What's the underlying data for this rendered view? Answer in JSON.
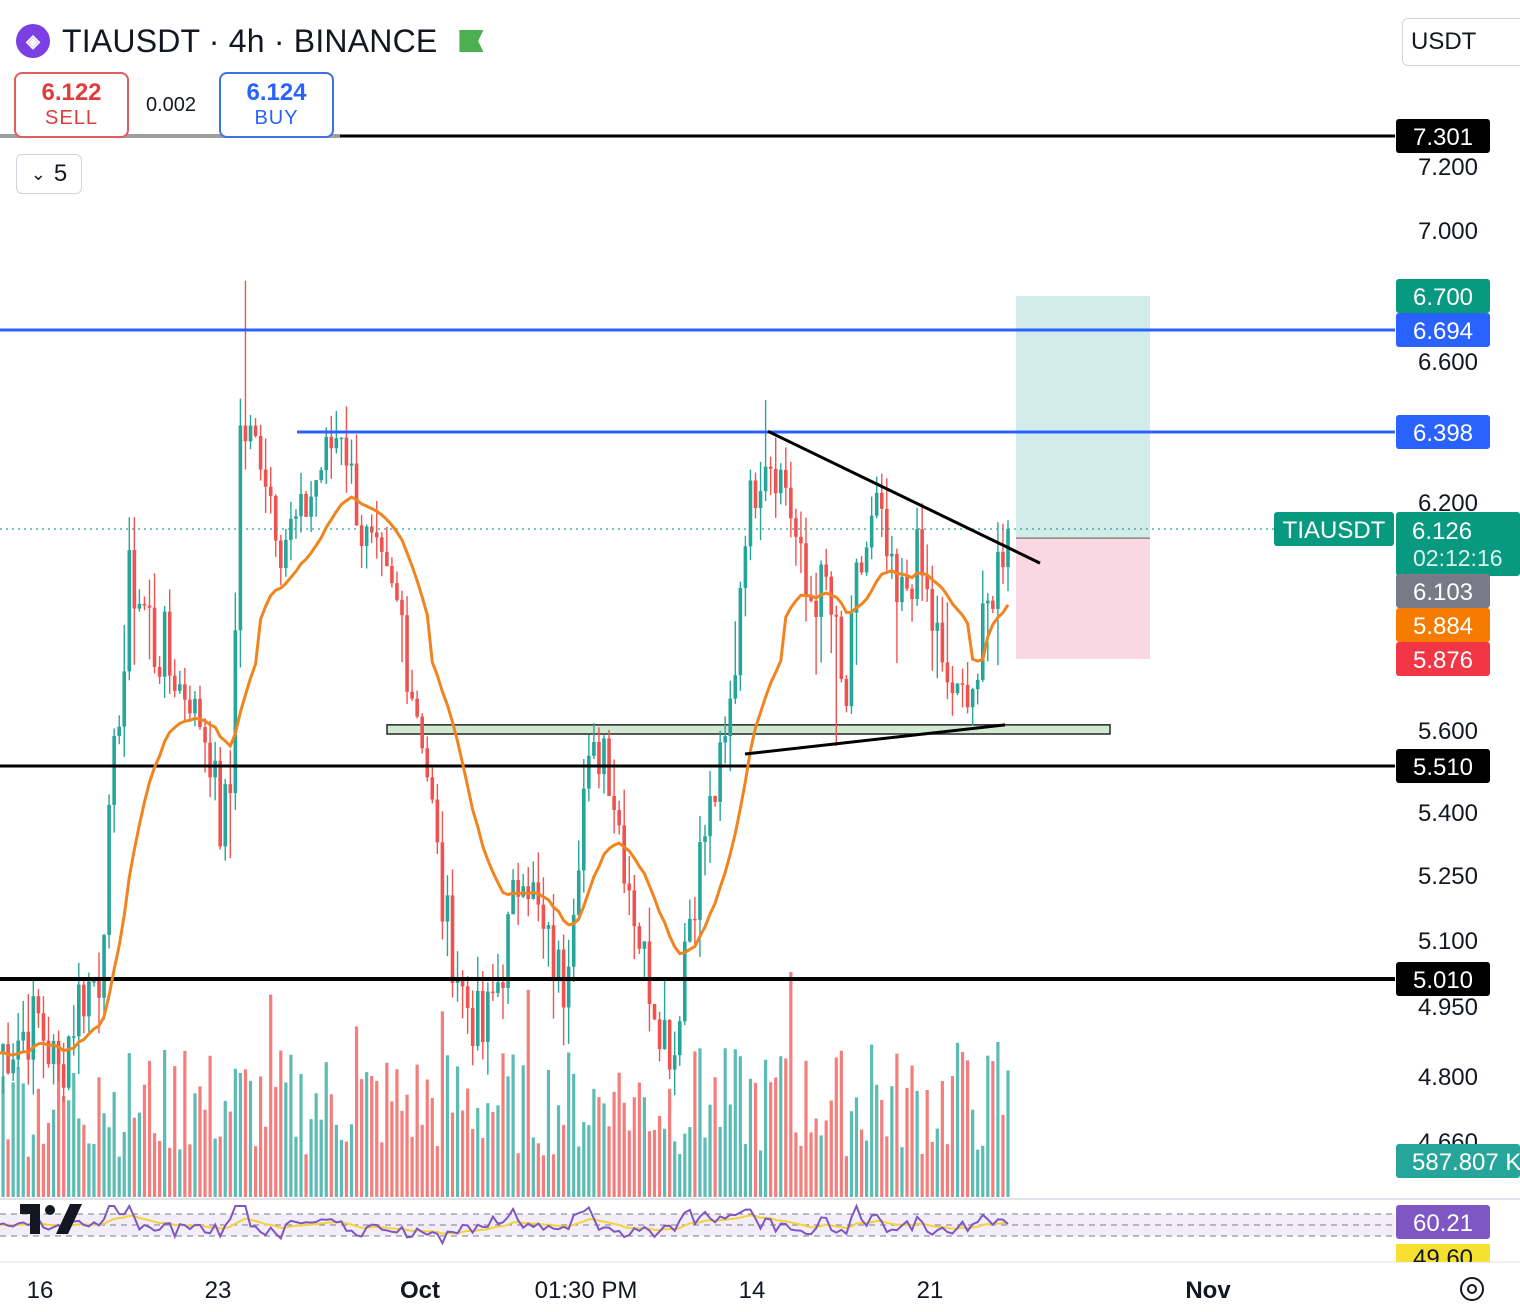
{
  "header": {
    "title": "TIAUSDT · 4h · BINANCE",
    "currency": "USDT"
  },
  "trade": {
    "sell_price": "6.122",
    "sell_label": "SELL",
    "spread": "0.002",
    "buy_price": "6.124",
    "buy_label": "BUY"
  },
  "indicators_toggle": {
    "count": "5"
  },
  "colors": {
    "up": "#26a69a",
    "down": "#ef5350",
    "ema": "#f08520",
    "blue_line": "#2962ff",
    "black_line": "#000000",
    "rsi": "#7e57c2",
    "rsi_ma": "#f5d13d"
  },
  "chart_data": {
    "type": "candlestick",
    "symbol": "TIAUSDT",
    "interval": "4h",
    "exchange": "BINANCE",
    "y_axis_ticks": [
      "7.200",
      "7.000",
      "6.600",
      "6.200",
      "5.600",
      "5.400",
      "5.250",
      "5.100",
      "4.950",
      "4.800",
      "4.660"
    ],
    "x_axis_ticks": [
      "16",
      "23",
      "Oct",
      "01:30 PM",
      "14",
      "21",
      "Nov"
    ],
    "ohlc_anchors": [
      {
        "x": "16",
        "high": 5.08,
        "low": 4.66
      },
      {
        "x": "23",
        "high": 6.77,
        "low": 5.29
      },
      {
        "x": "Oct",
        "high": 5.55,
        "low": 4.95
      },
      {
        "x": "14",
        "high": 6.49,
        "low": 5.67
      },
      {
        "x": "21",
        "high": 6.16,
        "low": 5.61
      },
      {
        "x": "last",
        "open": 6.02,
        "close": 6.126,
        "high": 6.15
      }
    ],
    "price_labels": [
      {
        "value": "7.301",
        "kind": "horizontal line"
      },
      {
        "value": "6.700",
        "kind": "target"
      },
      {
        "value": "6.694",
        "kind": "horizontal line"
      },
      {
        "value": "6.398",
        "kind": "horizontal line"
      },
      {
        "value": "6.126",
        "kind": "last price",
        "symbol": "TIAUSDT",
        "countdown": "02:12:16"
      },
      {
        "value": "6.103",
        "kind": "entry"
      },
      {
        "value": "5.884",
        "kind": "ema"
      },
      {
        "value": "5.876",
        "kind": "stop"
      },
      {
        "value": "5.510",
        "kind": "horizontal line"
      },
      {
        "value": "5.010",
        "kind": "horizontal line"
      }
    ],
    "position": {
      "type": "long",
      "entry": 6.103,
      "target": 6.7,
      "stop": 5.876
    },
    "support_zone": [
      5.59,
      5.62
    ],
    "trendlines": [
      {
        "kind": "descending",
        "from": 6.4,
        "to": 6.04
      },
      {
        "kind": "ascending",
        "from": 5.54,
        "to": 5.62
      }
    ],
    "volume_label": "587.807 K",
    "rsi": {
      "value": "60.21",
      "ma_value": "49.60"
    }
  }
}
